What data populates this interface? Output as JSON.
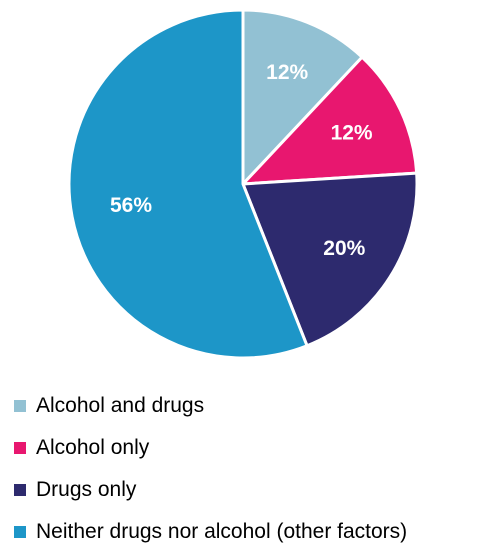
{
  "chart_data": {
    "type": "pie",
    "title": "",
    "slices": [
      {
        "label": "Alcohol and drugs",
        "value": 12,
        "display": "12%",
        "color": "#92c1d3"
      },
      {
        "label": "Alcohol only",
        "value": 12,
        "display": "12%",
        "color": "#e8176f"
      },
      {
        "label": "Drugs only",
        "value": 20,
        "display": "20%",
        "color": "#2d2a6e"
      },
      {
        "label": "Neither drugs nor alcohol (other factors)",
        "value": 56,
        "display": "56%",
        "color": "#1d96c8"
      }
    ],
    "legend_position": "bottom-left",
    "start_angle": "top",
    "direction": "clockwise"
  }
}
